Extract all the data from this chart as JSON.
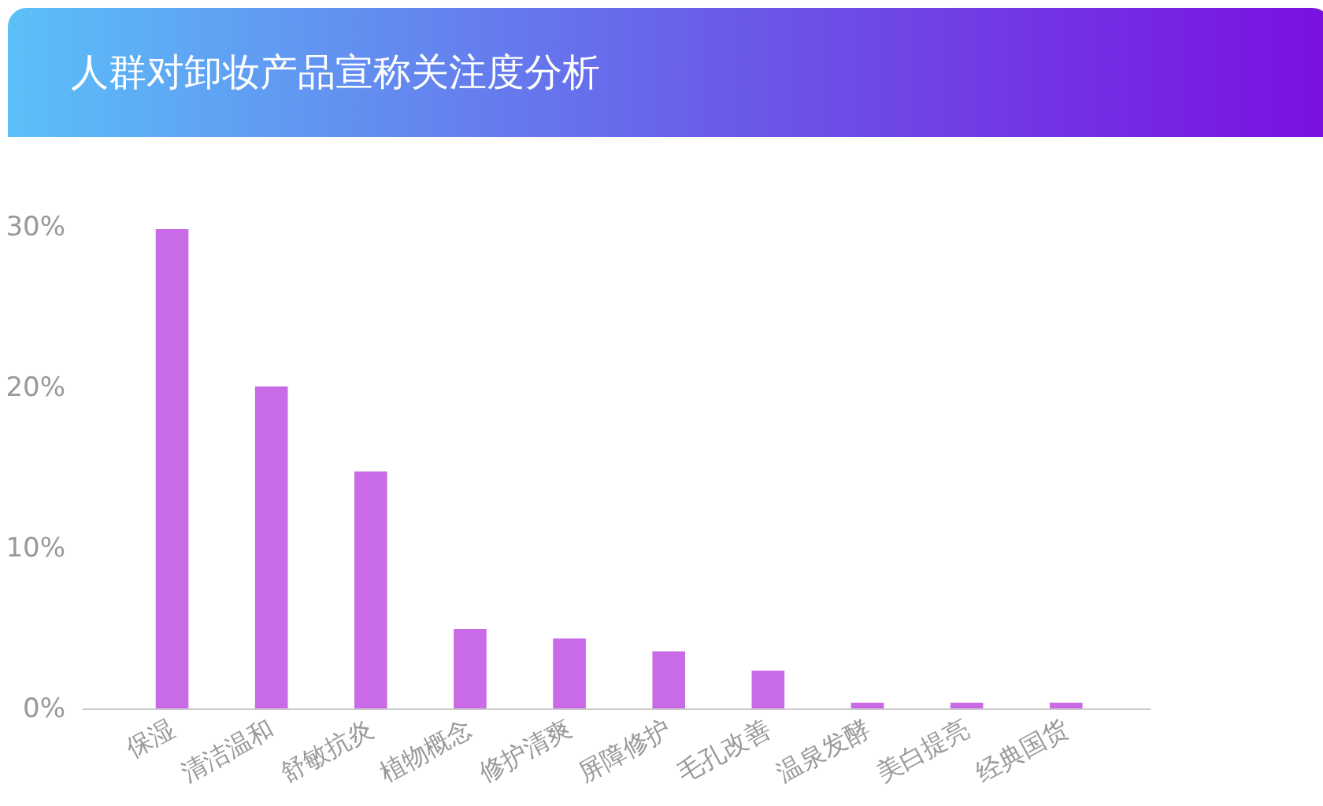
{
  "chart_data": {
    "type": "bar",
    "title": "人群对卸妆产品宣称关注度分析",
    "categories": [
      "保湿",
      "清洁温和",
      "舒敏抗炎",
      "植物概念",
      "修护清爽",
      "屏障修护",
      "毛孔改善",
      "温泉发酵",
      "美白提亮",
      "经典国货"
    ],
    "values": [
      29.9,
      20.1,
      14.8,
      5.0,
      4.4,
      3.6,
      2.4,
      0.4,
      0.4,
      0.4
    ],
    "color": "#c96ae6",
    "ylim": [
      0,
      30
    ],
    "yticks": [
      {
        "value": 0,
        "label": "0%"
      },
      {
        "value": 10,
        "label": "10%"
      },
      {
        "value": 20,
        "label": "20%"
      },
      {
        "value": 30,
        "label": "30%"
      }
    ],
    "grid": false
  }
}
